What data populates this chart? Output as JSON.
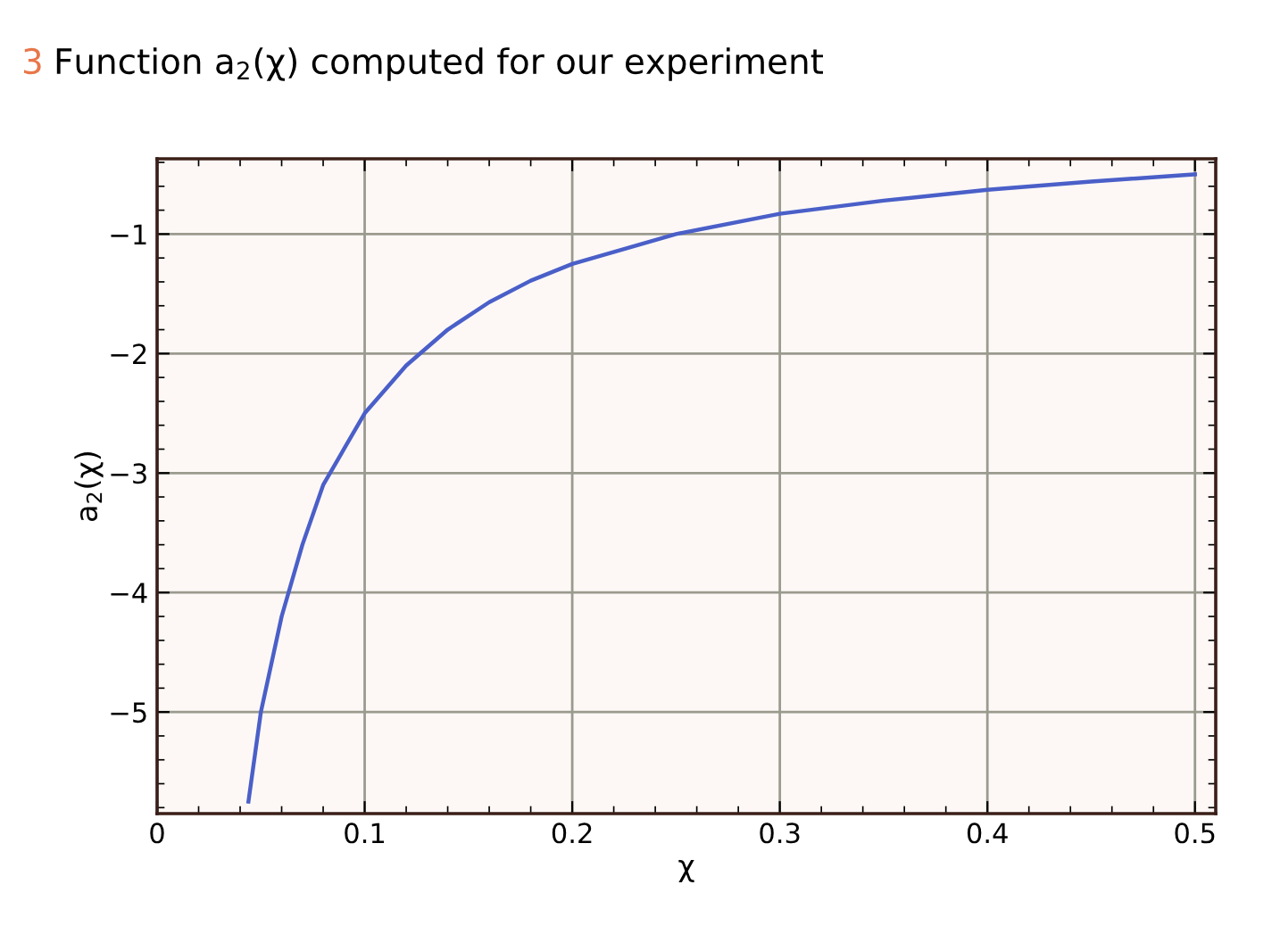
{
  "chart_data": {
    "type": "line",
    "title": "Function a$_{2}$(χ) computed for our experiment",
    "annotations": [
      "3"
    ],
    "xlabel": "χ",
    "ylabel": "a$_{2}$(χ)",
    "series": [
      {
        "color": "#4a5fc8",
        "x": [
          0.044,
          0.05,
          0.06,
          0.07,
          0.08,
          0.09,
          0.1,
          0.12,
          0.14,
          0.16,
          0.18,
          0.2,
          0.25,
          0.3,
          0.35,
          0.4,
          0.45,
          0.5
        ],
        "values": [
          -5.75,
          -5.0,
          -4.2,
          -3.6,
          -3.1,
          -2.8,
          -2.5,
          -2.1,
          -1.8,
          -1.57,
          -1.39,
          -1.25,
          -1.0,
          -0.83,
          -0.72,
          -0.63,
          -0.56,
          -0.5
        ]
      }
    ],
    "xlim": [
      0,
      0.51
    ],
    "ylim": [
      -5.85,
      -0.37
    ],
    "xticks": [
      {
        "value": 0,
        "label": "0"
      },
      0.1,
      0.2,
      0.3,
      0.4,
      0.5
    ],
    "yticks": [
      {
        "value": -5,
        "label": "−5"
      },
      {
        "value": -4,
        "label": "−4"
      },
      {
        "value": -3,
        "label": "−3"
      },
      {
        "value": -2,
        "label": "−2"
      },
      {
        "value": -1,
        "label": "−1"
      }
    ],
    "grid": true,
    "marker": "none",
    "line_style": "solid"
  }
}
